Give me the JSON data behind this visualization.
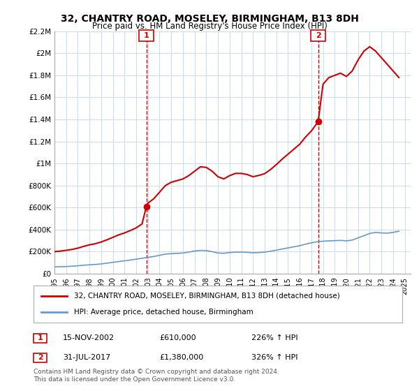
{
  "title": "32, CHANTRY ROAD, MOSELEY, BIRMINGHAM, B13 8DH",
  "subtitle": "Price paid vs. HM Land Registry's House Price Index (HPI)",
  "legend_label_red": "32, CHANTRY ROAD, MOSELEY, BIRMINGHAM, B13 8DH (detached house)",
  "legend_label_blue": "HPI: Average price, detached house, Birmingham",
  "footnote": "Contains HM Land Registry data © Crown copyright and database right 2024.\nThis data is licensed under the Open Government Licence v3.0.",
  "marker1_date": "15-NOV-2002",
  "marker1_price": 610000,
  "marker1_label": "226% ↑ HPI",
  "marker1_x": 2002.87,
  "marker2_date": "31-JUL-2017",
  "marker2_price": 1380000,
  "marker2_label": "326% ↑ HPI",
  "marker2_x": 2017.58,
  "ylim": [
    0,
    2200000
  ],
  "xlim": [
    1995.0,
    2025.5
  ],
  "red_color": "#cc0000",
  "blue_color": "#6699cc",
  "marker_box_color": "#cc0000",
  "grid_color": "#ccddee",
  "bg_color": "#ddeeff",
  "plot_bg": "#ffffff",
  "hpi_data": {
    "x": [
      1995.0,
      1995.5,
      1996.0,
      1996.5,
      1997.0,
      1997.5,
      1998.0,
      1998.5,
      1999.0,
      1999.5,
      2000.0,
      2000.5,
      2001.0,
      2001.5,
      2002.0,
      2002.5,
      2003.0,
      2003.5,
      2004.0,
      2004.5,
      2005.0,
      2005.5,
      2006.0,
      2006.5,
      2007.0,
      2007.5,
      2008.0,
      2008.5,
      2009.0,
      2009.5,
      2010.0,
      2010.5,
      2011.0,
      2011.5,
      2012.0,
      2012.5,
      2013.0,
      2013.5,
      2014.0,
      2014.5,
      2015.0,
      2015.5,
      2016.0,
      2016.5,
      2017.0,
      2017.5,
      2018.0,
      2018.5,
      2019.0,
      2019.5,
      2020.0,
      2020.5,
      2021.0,
      2021.5,
      2022.0,
      2022.5,
      2023.0,
      2023.5,
      2024.0,
      2024.5
    ],
    "y": [
      62000,
      63000,
      65000,
      68000,
      72000,
      77000,
      81000,
      84000,
      89000,
      96000,
      103000,
      110000,
      117000,
      124000,
      132000,
      140000,
      148000,
      156000,
      167000,
      178000,
      182000,
      184000,
      188000,
      196000,
      206000,
      212000,
      210000,
      200000,
      188000,
      185000,
      192000,
      196000,
      196000,
      194000,
      190000,
      192000,
      196000,
      204000,
      214000,
      224000,
      234000,
      244000,
      254000,
      268000,
      280000,
      290000,
      295000,
      298000,
      300000,
      302000,
      298000,
      305000,
      325000,
      345000,
      365000,
      375000,
      370000,
      368000,
      375000,
      385000
    ]
  },
  "red_data": {
    "x": [
      1995.0,
      1995.5,
      1996.0,
      1996.5,
      1997.0,
      1997.5,
      1998.0,
      1998.5,
      1999.0,
      1999.5,
      2000.0,
      2000.5,
      2001.0,
      2001.5,
      2002.0,
      2002.5,
      2002.87,
      2002.87,
      2003.0,
      2003.5,
      2004.0,
      2004.5,
      2005.0,
      2005.5,
      2006.0,
      2006.5,
      2007.0,
      2007.5,
      2008.0,
      2008.5,
      2009.0,
      2009.5,
      2010.0,
      2010.5,
      2011.0,
      2011.5,
      2012.0,
      2012.5,
      2013.0,
      2013.5,
      2014.0,
      2014.5,
      2015.0,
      2015.5,
      2016.0,
      2016.5,
      2017.0,
      2017.58,
      2017.58,
      2018.0,
      2018.5,
      2019.0,
      2019.5,
      2020.0,
      2020.5,
      2021.0,
      2021.5,
      2022.0,
      2022.5,
      2023.0,
      2023.5,
      2024.0,
      2024.5
    ],
    "y": [
      200000,
      205000,
      212000,
      220000,
      232000,
      248000,
      262000,
      272000,
      288000,
      308000,
      330000,
      352000,
      370000,
      392000,
      416000,
      452000,
      610000,
      610000,
      640000,
      680000,
      740000,
      800000,
      830000,
      845000,
      860000,
      890000,
      930000,
      970000,
      965000,
      930000,
      880000,
      860000,
      890000,
      910000,
      910000,
      900000,
      880000,
      892000,
      908000,
      945000,
      990000,
      1040000,
      1085000,
      1130000,
      1175000,
      1240000,
      1295000,
      1380000,
      1380000,
      1720000,
      1780000,
      1800000,
      1820000,
      1790000,
      1840000,
      1940000,
      2020000,
      2060000,
      2020000,
      1960000,
      1900000,
      1840000,
      1780000
    ]
  },
  "yticks": [
    0,
    200000,
    400000,
    600000,
    800000,
    1000000,
    1200000,
    1400000,
    1600000,
    1800000,
    2000000,
    2200000
  ],
  "ytick_labels": [
    "£0",
    "£200K",
    "£400K",
    "£600K",
    "£800K",
    "£1M",
    "£1.2M",
    "£1.4M",
    "£1.6M",
    "£1.8M",
    "£2M",
    "£2.2M"
  ],
  "xticks": [
    1995,
    1996,
    1997,
    1998,
    1999,
    2000,
    2001,
    2002,
    2003,
    2004,
    2005,
    2006,
    2007,
    2008,
    2009,
    2010,
    2011,
    2012,
    2013,
    2014,
    2015,
    2016,
    2017,
    2018,
    2019,
    2020,
    2021,
    2022,
    2023,
    2024,
    2025
  ]
}
